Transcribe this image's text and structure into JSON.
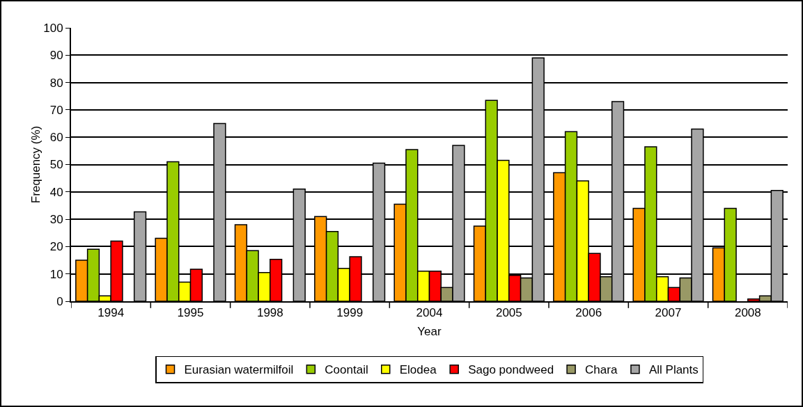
{
  "chart_data": {
    "type": "bar",
    "xlabel": "Year",
    "ylabel": "Frequency (%)",
    "categories": [
      "1994",
      "1995",
      "1998",
      "1999",
      "2004",
      "2005",
      "2006",
      "2007",
      "2008"
    ],
    "series": [
      {
        "name": "Eurasian watermilfoil",
        "color": "#ff9900",
        "values": [
          15,
          23,
          28,
          31,
          35.5,
          27.5,
          47,
          34,
          19.5
        ]
      },
      {
        "name": "Coontail",
        "color": "#99cc00",
        "values": [
          19,
          51,
          18.5,
          25.5,
          55.5,
          73.5,
          62,
          56.5,
          34
        ]
      },
      {
        "name": "Elodea",
        "color": "#ffff00",
        "values": [
          2,
          7,
          10.5,
          12,
          11,
          51.5,
          44,
          9,
          null
        ]
      },
      {
        "name": "Sago pondweed",
        "color": "#ff0000",
        "values": [
          22,
          11.7,
          15.3,
          16.3,
          11,
          9.5,
          17.5,
          5,
          0.8
        ]
      },
      {
        "name": "Chara",
        "color": "#999966",
        "values": [
          null,
          null,
          null,
          null,
          5,
          8.5,
          9,
          8.5,
          2
        ]
      },
      {
        "name": "All Plants",
        "color": "#a6a6a6",
        "values": [
          32.7,
          65,
          41,
          50.5,
          57,
          89,
          73,
          63,
          40.5
        ]
      }
    ],
    "ylim": [
      0,
      100
    ],
    "yticks": [
      0,
      10,
      20,
      30,
      40,
      50,
      60,
      70,
      80,
      90,
      100
    ],
    "grid": "y",
    "legend": "bottom"
  }
}
